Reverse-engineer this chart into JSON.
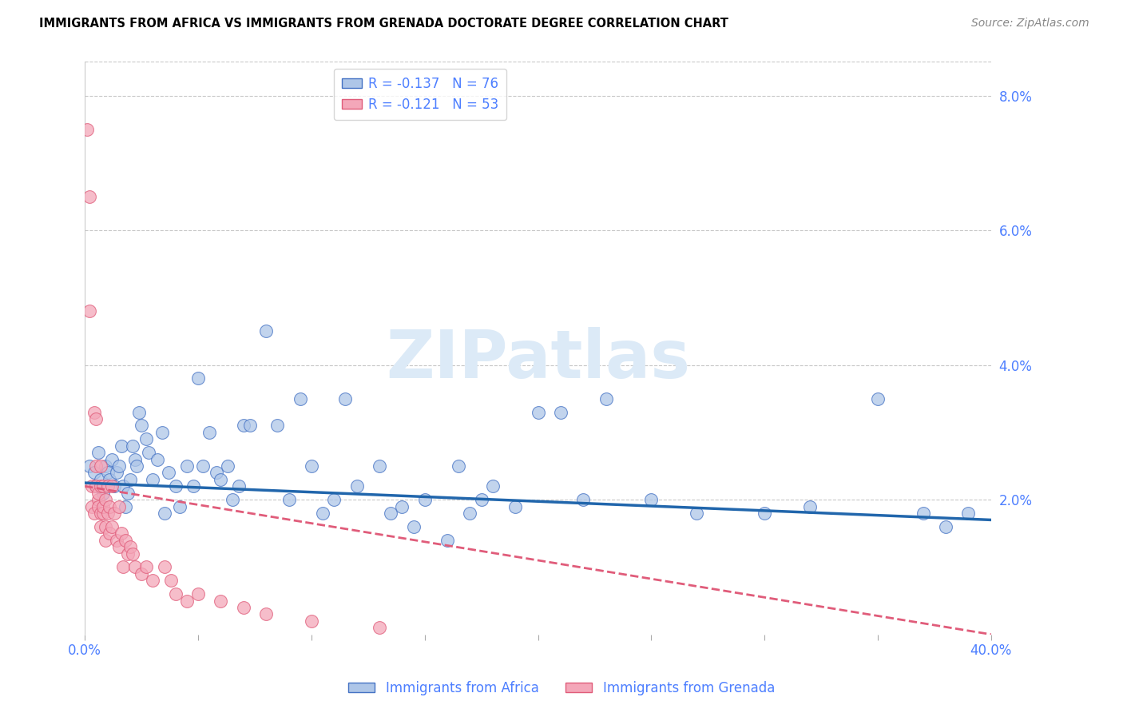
{
  "title": "IMMIGRANTS FROM AFRICA VS IMMIGRANTS FROM GRENADA DOCTORATE DEGREE CORRELATION CHART",
  "source": "Source: ZipAtlas.com",
  "xlabel_bottom": [
    "Immigrants from Africa",
    "Immigrants from Grenada"
  ],
  "ylabel": "Doctorate Degree",
  "xlim": [
    0.0,
    0.4
  ],
  "ylim": [
    0.0,
    0.085
  ],
  "xtick_vals": [
    0.0,
    0.05,
    0.1,
    0.15,
    0.2,
    0.25,
    0.3,
    0.35,
    0.4
  ],
  "xtick_labels": [
    "0.0%",
    "",
    "",
    "",
    "",
    "",
    "",
    "",
    "40.0%"
  ],
  "ytick_vals": [
    0.0,
    0.02,
    0.04,
    0.06,
    0.08
  ],
  "ytick_labels": [
    "",
    "2.0%",
    "4.0%",
    "6.0%",
    "8.0%"
  ],
  "legend_africa": "R = -0.137   N = 76",
  "legend_grenada": "R = -0.121   N = 53",
  "color_africa_fill": "#aec6e8",
  "color_africa_edge": "#4472c4",
  "color_grenada_fill": "#f4a7b9",
  "color_grenada_edge": "#e05c7a",
  "color_africa_line": "#2166ac",
  "color_grenada_line": "#e05c7a",
  "color_axis_text": "#4d7fff",
  "color_grid": "#c8c8c8",
  "watermark_text": "ZIPatlas",
  "watermark_color": "#dceaf7",
  "background_color": "#ffffff",
  "africa_line_y0": 0.0225,
  "africa_line_y1": 0.017,
  "grenada_line_y0": 0.022,
  "grenada_line_y1": 0.0,
  "africa_x": [
    0.002,
    0.004,
    0.005,
    0.006,
    0.007,
    0.008,
    0.009,
    0.01,
    0.011,
    0.012,
    0.013,
    0.014,
    0.015,
    0.016,
    0.017,
    0.018,
    0.019,
    0.02,
    0.021,
    0.022,
    0.023,
    0.024,
    0.025,
    0.027,
    0.028,
    0.03,
    0.032,
    0.034,
    0.035,
    0.037,
    0.04,
    0.042,
    0.045,
    0.048,
    0.05,
    0.052,
    0.055,
    0.058,
    0.06,
    0.063,
    0.065,
    0.068,
    0.07,
    0.073,
    0.08,
    0.085,
    0.09,
    0.095,
    0.1,
    0.105,
    0.11,
    0.115,
    0.12,
    0.13,
    0.135,
    0.14,
    0.145,
    0.15,
    0.16,
    0.165,
    0.17,
    0.175,
    0.18,
    0.19,
    0.2,
    0.21,
    0.22,
    0.23,
    0.25,
    0.27,
    0.3,
    0.32,
    0.35,
    0.37,
    0.38,
    0.39
  ],
  "africa_y": [
    0.025,
    0.024,
    0.022,
    0.027,
    0.023,
    0.021,
    0.025,
    0.024,
    0.023,
    0.026,
    0.022,
    0.024,
    0.025,
    0.028,
    0.022,
    0.019,
    0.021,
    0.023,
    0.028,
    0.026,
    0.025,
    0.033,
    0.031,
    0.029,
    0.027,
    0.023,
    0.026,
    0.03,
    0.018,
    0.024,
    0.022,
    0.019,
    0.025,
    0.022,
    0.038,
    0.025,
    0.03,
    0.024,
    0.023,
    0.025,
    0.02,
    0.022,
    0.031,
    0.031,
    0.045,
    0.031,
    0.02,
    0.035,
    0.025,
    0.018,
    0.02,
    0.035,
    0.022,
    0.025,
    0.018,
    0.019,
    0.016,
    0.02,
    0.014,
    0.025,
    0.018,
    0.02,
    0.022,
    0.019,
    0.033,
    0.033,
    0.02,
    0.035,
    0.02,
    0.018,
    0.018,
    0.019,
    0.035,
    0.018,
    0.016,
    0.018
  ],
  "grenada_x": [
    0.001,
    0.002,
    0.002,
    0.003,
    0.003,
    0.004,
    0.004,
    0.005,
    0.005,
    0.005,
    0.006,
    0.006,
    0.006,
    0.007,
    0.007,
    0.007,
    0.007,
    0.008,
    0.008,
    0.008,
    0.009,
    0.009,
    0.009,
    0.01,
    0.01,
    0.011,
    0.011,
    0.012,
    0.012,
    0.013,
    0.014,
    0.015,
    0.015,
    0.016,
    0.017,
    0.018,
    0.019,
    0.02,
    0.021,
    0.022,
    0.025,
    0.027,
    0.03,
    0.035,
    0.038,
    0.04,
    0.045,
    0.05,
    0.06,
    0.07,
    0.08,
    0.1,
    0.13
  ],
  "grenada_y": [
    0.075,
    0.065,
    0.048,
    0.022,
    0.019,
    0.018,
    0.033,
    0.025,
    0.022,
    0.032,
    0.02,
    0.019,
    0.021,
    0.025,
    0.022,
    0.018,
    0.016,
    0.022,
    0.018,
    0.019,
    0.016,
    0.014,
    0.02,
    0.022,
    0.018,
    0.019,
    0.015,
    0.016,
    0.022,
    0.018,
    0.014,
    0.013,
    0.019,
    0.015,
    0.01,
    0.014,
    0.012,
    0.013,
    0.012,
    0.01,
    0.009,
    0.01,
    0.008,
    0.01,
    0.008,
    0.006,
    0.005,
    0.006,
    0.005,
    0.004,
    0.003,
    0.002,
    0.001
  ]
}
